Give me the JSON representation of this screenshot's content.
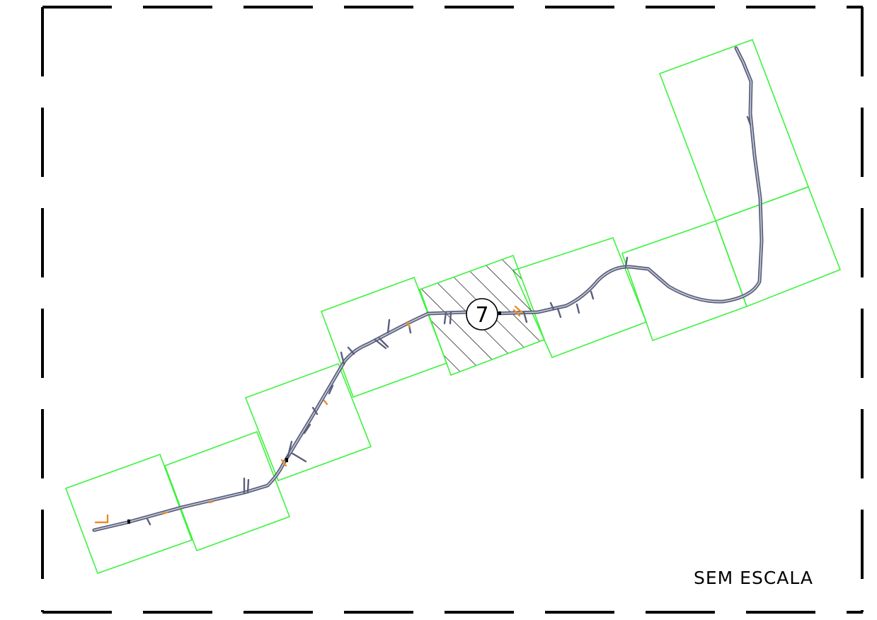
{
  "map": {
    "scale_note": "SEM ESCALA",
    "current_sheet_number": "7",
    "colors": {
      "sheet_frame": "#3ef23e",
      "road": "#5a5f7d",
      "road_casing": "#c8cbd6",
      "feature": "#e88d2a",
      "border": "#000000",
      "hatch": "#000000"
    },
    "sheet_count": 8,
    "highlighted_sheet_index": 5
  }
}
